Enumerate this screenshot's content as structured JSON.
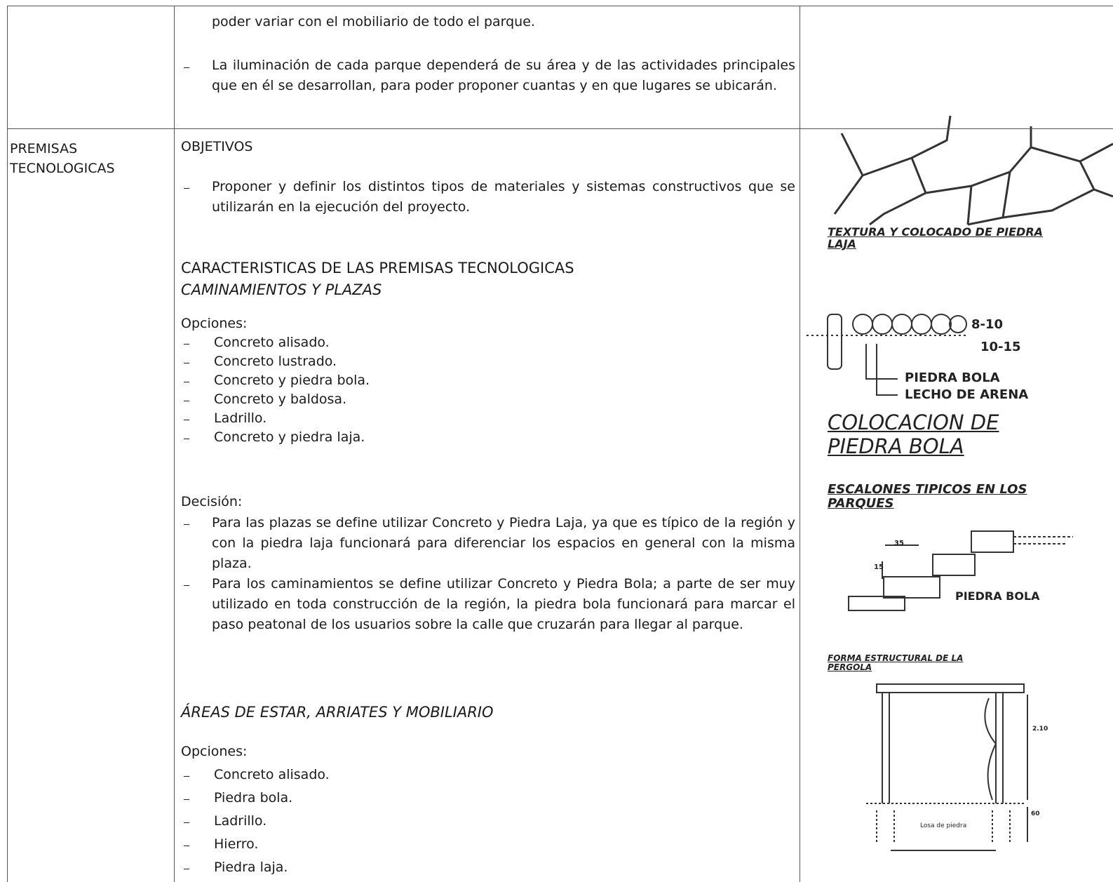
{
  "table": {
    "rows": [
      {
        "content": {
          "paragraphs": [
            "poder variar con el mobiliario de todo el parque.",
            "La iluminación de cada parque dependerá de su área y de las actividades principales que en él se desarrollan, para poder proponer cuantas y en que lugares se ubicarán."
          ]
        }
      },
      {
        "label": "PREMISAS TECNOLOGICAS",
        "content": {
          "objectives_heading": "OBJETIVOS",
          "objectives": [
            "Proponer y definir los distintos tipos de materiales y sistemas constructivos que se utilizarán en la ejecución del proyecto."
          ],
          "section_heading": "CARACTERISTICAS DE LAS PREMISAS TECNOLOGICAS",
          "subsections": [
            {
              "title": "CAMINAMIENTOS Y PLAZAS",
              "options_heading": "Opciones:",
              "options": [
                "Concreto alisado.",
                "Concreto lustrado.",
                "Concreto y piedra bola.",
                "Concreto y baldosa.",
                "Ladrillo.",
                "Concreto y piedra laja."
              ],
              "decision_heading": "Decisión:",
              "decisions": [
                "Para las plazas se define utilizar Concreto y Piedra Laja, ya que es típico de la región y con la piedra laja funcionará para diferenciar los espacios en general con la misma plaza.",
                "Para los caminamientos se define utilizar Concreto y Piedra Bola; a parte de ser muy utilizado en toda construcción de la región, la piedra bola funcionará para marcar el paso peatonal de los usuarios sobre la calle que cruzarán para llegar al parque."
              ]
            },
            {
              "title": "ÁREAS DE ESTAR, ARRIATES Y MOBILIARIO",
              "options_heading": "Opciones:",
              "options": [
                "Concreto alisado.",
                "Piedra bola.",
                "Ladrillo.",
                "Hierro.",
                "Piedra laja."
              ]
            }
          ]
        },
        "figures": [
          {
            "caption": "TEXTURA Y COLOCADO DE PIEDRA LAJA"
          },
          {
            "labels": [
              "8-10",
              "10-15",
              "PIEDRA BOLA",
              "LECHO DE ARENA"
            ],
            "caption": "COLOCACION DE PIEDRA BOLA"
          },
          {
            "caption": "ESCALONES TIPICOS EN LOS PARQUES",
            "labels": [
              "35",
              "15",
              "PIEDRA BOLA"
            ]
          },
          {
            "caption": "FORMA ESTRUCTURAL DE LA PERGOLA",
            "labels": [
              "2.10",
              "60",
              "Losa de piedra"
            ]
          }
        ]
      }
    ]
  }
}
